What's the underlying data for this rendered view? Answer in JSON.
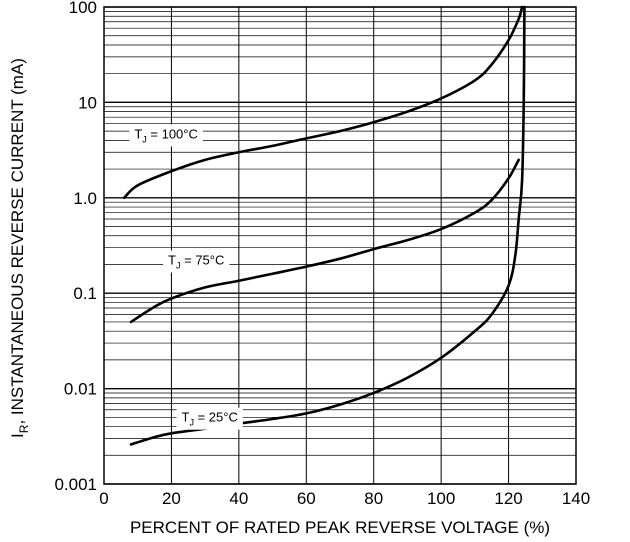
{
  "chart_data": {
    "type": "line",
    "title": "",
    "xlabel": "PERCENT OF RATED PEAK REVERSE VOLTAGE (%)",
    "ylabel_prefix": "I",
    "ylabel_sub": "R",
    "ylabel_rest": ", INSTANTANEOUS REVERSE CURRENT (mA)",
    "xlim": [
      0,
      140
    ],
    "ylim": [
      0.001,
      100
    ],
    "yscale": "log",
    "grid": true,
    "x_ticks": [
      {
        "value": 0,
        "label": "0"
      },
      {
        "value": 20,
        "label": "20"
      },
      {
        "value": 40,
        "label": "40"
      },
      {
        "value": 60,
        "label": "60"
      },
      {
        "value": 80,
        "label": "80"
      },
      {
        "value": 100,
        "label": "100"
      },
      {
        "value": 120,
        "label": "120"
      },
      {
        "value": 140,
        "label": "140"
      }
    ],
    "y_ticks": [
      {
        "value": 0.001,
        "label": "0.001"
      },
      {
        "value": 0.01,
        "label": "0.01"
      },
      {
        "value": 0.1,
        "label": "0.1"
      },
      {
        "value": 1,
        "label": "1.0"
      },
      {
        "value": 10,
        "label": "10"
      },
      {
        "value": 100,
        "label": "100"
      }
    ],
    "series": [
      {
        "name": "T_J = 100°C",
        "label_main": "T",
        "label_sub": "J",
        "label_rest": " = 100°C",
        "label_at": [
          9,
          4.2
        ],
        "points": [
          [
            6,
            1.0
          ],
          [
            10,
            1.35
          ],
          [
            20,
            1.9
          ],
          [
            30,
            2.5
          ],
          [
            40,
            3.0
          ],
          [
            50,
            3.5
          ],
          [
            60,
            4.2
          ],
          [
            70,
            5.0
          ],
          [
            80,
            6.2
          ],
          [
            90,
            8.0
          ],
          [
            100,
            11
          ],
          [
            110,
            17
          ],
          [
            115,
            25
          ],
          [
            120,
            45
          ],
          [
            123,
            75
          ],
          [
            124,
            100
          ]
        ]
      },
      {
        "name": "T_J = 75°C",
        "label_main": "T",
        "label_sub": "J",
        "label_rest": " = 75°C",
        "label_at": [
          19,
          0.2
        ],
        "points": [
          [
            8,
            0.05
          ],
          [
            15,
            0.072
          ],
          [
            20,
            0.088
          ],
          [
            30,
            0.115
          ],
          [
            40,
            0.135
          ],
          [
            50,
            0.16
          ],
          [
            60,
            0.19
          ],
          [
            70,
            0.23
          ],
          [
            80,
            0.29
          ],
          [
            90,
            0.36
          ],
          [
            100,
            0.47
          ],
          [
            110,
            0.7
          ],
          [
            115,
            0.95
          ],
          [
            120,
            1.6
          ],
          [
            123,
            2.5
          ]
        ]
      },
      {
        "name": "T_J = 25°C",
        "label_main": "T",
        "label_sub": "J",
        "label_rest": " = 25°C",
        "label_at": [
          23,
          0.0045
        ],
        "points": [
          [
            8,
            0.0026
          ],
          [
            15,
            0.0031
          ],
          [
            20,
            0.0034
          ],
          [
            30,
            0.0038
          ],
          [
            40,
            0.0043
          ],
          [
            50,
            0.0048
          ],
          [
            60,
            0.0055
          ],
          [
            70,
            0.0068
          ],
          [
            80,
            0.009
          ],
          [
            90,
            0.013
          ],
          [
            100,
            0.021
          ],
          [
            110,
            0.04
          ],
          [
            115,
            0.06
          ],
          [
            120,
            0.12
          ],
          [
            122,
            0.25
          ],
          [
            123,
            0.6
          ],
          [
            124,
            1.5
          ],
          [
            124.5,
            10
          ],
          [
            124.7,
            100
          ]
        ]
      }
    ]
  }
}
